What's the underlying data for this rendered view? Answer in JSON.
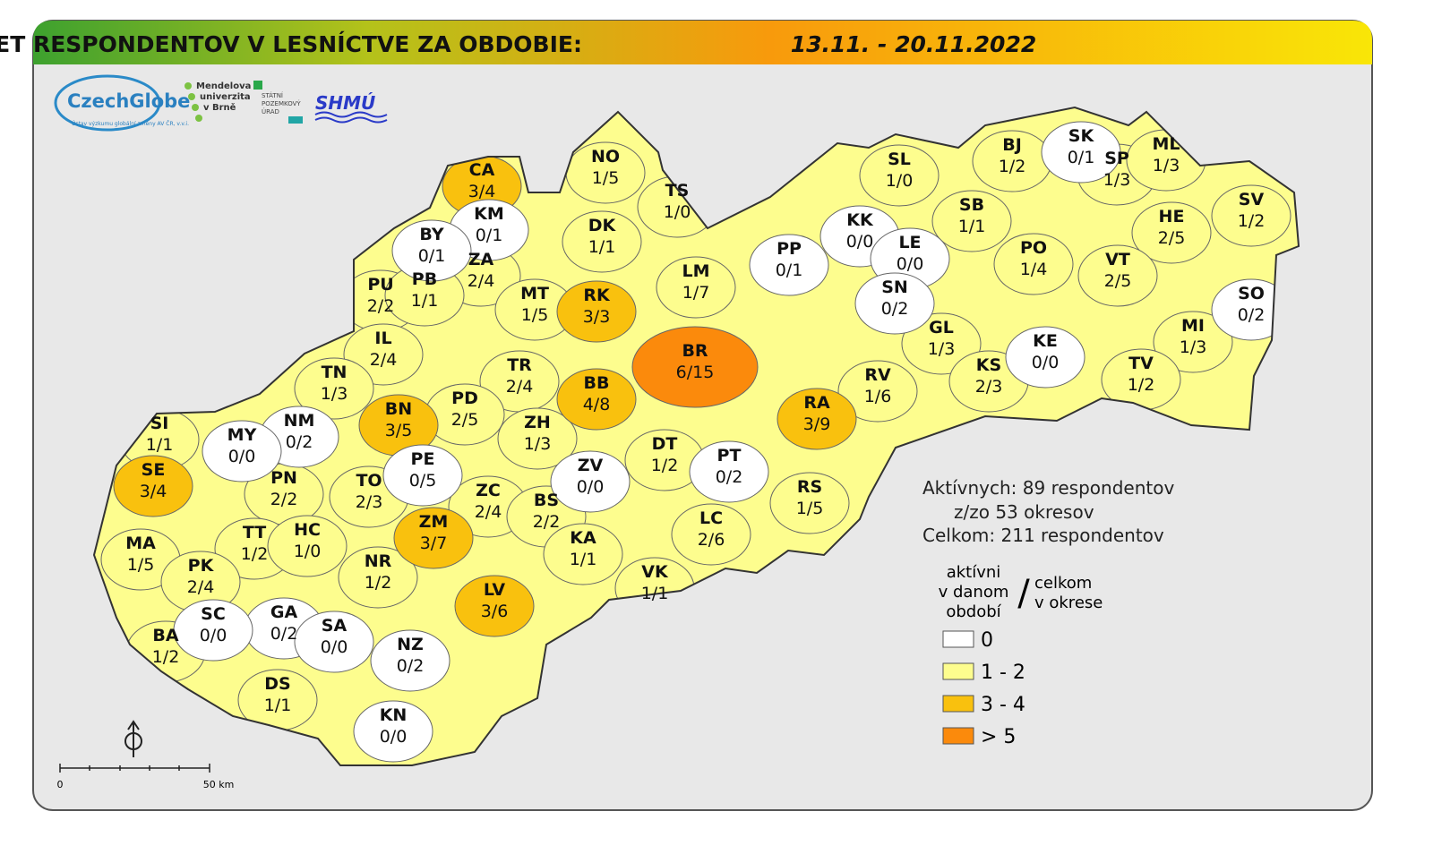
{
  "header": {
    "title": "POČET RESPONDENTOV V LESNÍCTVE ZA OBDOBIE:",
    "period": "13.11. - 20.11.2022"
  },
  "logos": {
    "czechglobe": "CzechGlobe",
    "czechglobe_sub": "Ústav výzkumu globální změny AV ČR, v.v.i.",
    "mendel": [
      "Mendelova",
      "univerzita",
      "v Brně"
    ],
    "spu": [
      "STÁTNÍ",
      "POZEMKOVÝ",
      "ÚRAD"
    ],
    "shmu": "SHMÚ"
  },
  "districts": [
    {
      "code": "CA",
      "label": "3/4",
      "color": "#f9c10e"
    },
    {
      "code": "KM",
      "label": "0/1",
      "color": "#ffffff"
    },
    {
      "code": "NO",
      "label": "1/5",
      "color": "#fdfd8e"
    },
    {
      "code": "TS",
      "label": "1/0",
      "color": "#fdfd8e"
    },
    {
      "code": "DK",
      "label": "1/1",
      "color": "#fdfd8e"
    },
    {
      "code": "BY",
      "label": "0/1",
      "color": "#ffffff"
    },
    {
      "code": "ZA",
      "label": "2/4",
      "color": "#fdfd8e"
    },
    {
      "code": "PU",
      "label": "2/2",
      "color": "#fdfd8e"
    },
    {
      "code": "PB",
      "label": "1/1",
      "color": "#fdfd8e"
    },
    {
      "code": "MT",
      "label": "1/5",
      "color": "#fdfd8e"
    },
    {
      "code": "RK",
      "label": "3/3",
      "color": "#f9c10e"
    },
    {
      "code": "LM",
      "label": "1/7",
      "color": "#fdfd8e"
    },
    {
      "code": "PP",
      "label": "0/1",
      "color": "#ffffff"
    },
    {
      "code": "KK",
      "label": "0/0",
      "color": "#ffffff"
    },
    {
      "code": "LE",
      "label": "0/0",
      "color": "#ffffff"
    },
    {
      "code": "SN",
      "label": "0/2",
      "color": "#ffffff"
    },
    {
      "code": "SL",
      "label": "1/0",
      "color": "#fdfd8e"
    },
    {
      "code": "BJ",
      "label": "1/2",
      "color": "#fdfd8e"
    },
    {
      "code": "SK",
      "label": "0/1",
      "color": "#ffffff"
    },
    {
      "code": "SP",
      "label": "1/3",
      "color": "#fdfd8e"
    },
    {
      "code": "ML",
      "label": "1/3",
      "color": "#fdfd8e"
    },
    {
      "code": "SB",
      "label": "1/1",
      "color": "#fdfd8e"
    },
    {
      "code": "SV",
      "label": "1/2",
      "color": "#fdfd8e"
    },
    {
      "code": "HE",
      "label": "2/5",
      "color": "#fdfd8e"
    },
    {
      "code": "PO",
      "label": "1/4",
      "color": "#fdfd8e"
    },
    {
      "code": "VT",
      "label": "2/5",
      "color": "#fdfd8e"
    },
    {
      "code": "SO",
      "label": "0/2",
      "color": "#ffffff"
    },
    {
      "code": "IL",
      "label": "2/4",
      "color": "#fdfd8e"
    },
    {
      "code": "TN",
      "label": "1/3",
      "color": "#fdfd8e"
    },
    {
      "code": "GL",
      "label": "1/3",
      "color": "#fdfd8e"
    },
    {
      "code": "KE",
      "label": "0/0",
      "color": "#ffffff"
    },
    {
      "code": "MI",
      "label": "1/3",
      "color": "#fdfd8e"
    },
    {
      "code": "BR",
      "label": "6/15",
      "color": "#fb8a0c"
    },
    {
      "code": "TR",
      "label": "2/4",
      "color": "#fdfd8e"
    },
    {
      "code": "BB",
      "label": "4/8",
      "color": "#f9c10e"
    },
    {
      "code": "RV",
      "label": "1/6",
      "color": "#fdfd8e"
    },
    {
      "code": "KS",
      "label": "2/3",
      "color": "#fdfd8e"
    },
    {
      "code": "TV",
      "label": "1/2",
      "color": "#fdfd8e"
    },
    {
      "code": "RA",
      "label": "3/9",
      "color": "#f9c10e"
    },
    {
      "code": "BN",
      "label": "3/5",
      "color": "#f9c10e"
    },
    {
      "code": "PD",
      "label": "2/5",
      "color": "#fdfd8e"
    },
    {
      "code": "SI",
      "label": "1/1",
      "color": "#fdfd8e"
    },
    {
      "code": "NM",
      "label": "0/2",
      "color": "#ffffff"
    },
    {
      "code": "MY",
      "label": "0/0",
      "color": "#ffffff"
    },
    {
      "code": "ZH",
      "label": "1/3",
      "color": "#fdfd8e"
    },
    {
      "code": "SE",
      "label": "3/4",
      "color": "#f9c10e"
    },
    {
      "code": "PE",
      "label": "0/5",
      "color": "#ffffff"
    },
    {
      "code": "ZV",
      "label": "0/0",
      "color": "#ffffff"
    },
    {
      "code": "DT",
      "label": "1/2",
      "color": "#fdfd8e"
    },
    {
      "code": "PT",
      "label": "0/2",
      "color": "#ffffff"
    },
    {
      "code": "RS",
      "label": "1/5",
      "color": "#fdfd8e"
    },
    {
      "code": "PN",
      "label": "2/2",
      "color": "#fdfd8e"
    },
    {
      "code": "TO",
      "label": "2/3",
      "color": "#fdfd8e"
    },
    {
      "code": "ZC",
      "label": "2/4",
      "color": "#fdfd8e"
    },
    {
      "code": "BS",
      "label": "2/2",
      "color": "#fdfd8e"
    },
    {
      "code": "ZM",
      "label": "3/7",
      "color": "#f9c10e"
    },
    {
      "code": "KA",
      "label": "1/1",
      "color": "#fdfd8e"
    },
    {
      "code": "LC",
      "label": "2/6",
      "color": "#fdfd8e"
    },
    {
      "code": "MA",
      "label": "1/5",
      "color": "#fdfd8e"
    },
    {
      "code": "TT",
      "label": "1/2",
      "color": "#fdfd8e"
    },
    {
      "code": "HC",
      "label": "1/0",
      "color": "#fdfd8e"
    },
    {
      "code": "NR",
      "label": "1/2",
      "color": "#fdfd8e"
    },
    {
      "code": "VK",
      "label": "1/1",
      "color": "#fdfd8e"
    },
    {
      "code": "PK",
      "label": "2/4",
      "color": "#fdfd8e"
    },
    {
      "code": "LV",
      "label": "3/6",
      "color": "#f9c10e"
    },
    {
      "code": "GA",
      "label": "0/2",
      "color": "#ffffff"
    },
    {
      "code": "SC",
      "label": "0/0",
      "color": "#ffffff"
    },
    {
      "code": "SA",
      "label": "0/0",
      "color": "#ffffff"
    },
    {
      "code": "BA",
      "label": "1/2",
      "color": "#fdfd8e"
    },
    {
      "code": "NZ",
      "label": "0/2",
      "color": "#ffffff"
    },
    {
      "code": "DS",
      "label": "1/1",
      "color": "#fdfd8e"
    },
    {
      "code": "KN",
      "label": "0/0",
      "color": "#ffffff"
    }
  ],
  "stats": [
    "Aktívnych: 89 respondentov",
    "z/zo 53 okresov",
    "Celkom: 211 respondentov"
  ],
  "legend": {
    "left": [
      "aktívni",
      "v danom",
      "období"
    ],
    "slash": "/",
    "right": [
      "celkom",
      "v okrese"
    ],
    "items": [
      {
        "label": "0",
        "color": "#ffffff"
      },
      {
        "label": "1 - 2",
        "color": "#fdfd8e"
      },
      {
        "label": "3 - 4",
        "color": "#f9c10e"
      },
      {
        "label": "> 5",
        "color": "#fb8a0c"
      }
    ]
  },
  "scale": {
    "start": "0",
    "end": "50 km"
  }
}
